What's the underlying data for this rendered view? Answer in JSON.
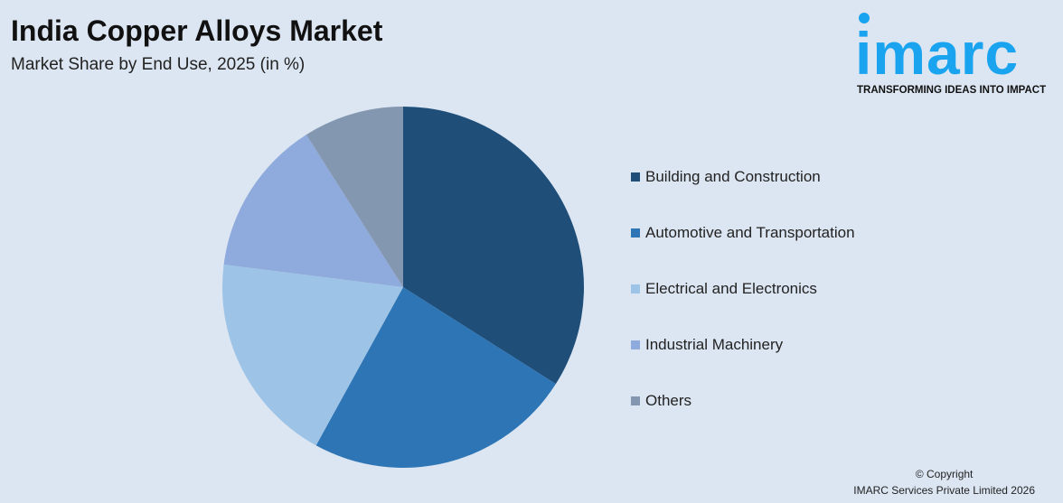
{
  "header": {
    "title": "India Copper Alloys Market",
    "subtitle": "Market Share by End Use, 2025 (in %)"
  },
  "logo": {
    "text": "imarc",
    "tagline": "TRANSFORMING IDEAS INTO IMPACT"
  },
  "chart_data": {
    "type": "pie",
    "title": "India Copper Alloys Market",
    "subtitle": "Market Share by End Use, 2025 (in %)",
    "categories": [
      "Building and Construction",
      "Automotive and Transportation",
      "Electrical and Electronics",
      "Industrial Machinery",
      "Others"
    ],
    "values": [
      34,
      24,
      19,
      14,
      9
    ],
    "colors": [
      "#1f4e79",
      "#2e75b6",
      "#9dc3e6",
      "#8faadc",
      "#8497b0"
    ],
    "legend_position": "right"
  },
  "footer": {
    "copyright": "© Copyright",
    "company": "IMARC Services Private Limited 2026"
  }
}
